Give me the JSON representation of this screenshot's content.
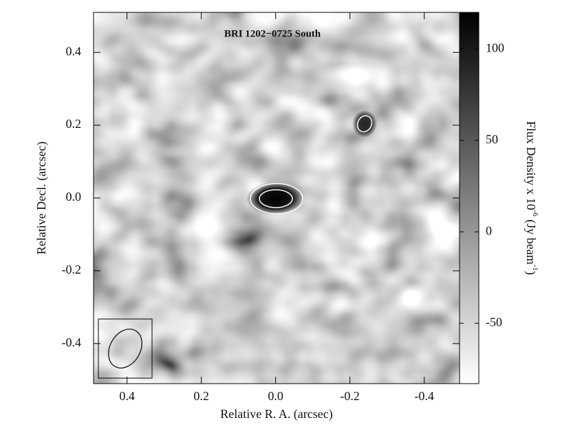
{
  "chart_data": {
    "type": "image",
    "title": "BRI 1202−0725 South",
    "x_label": "Relative R. A. (arcsec)",
    "y_label": "Relative Decl. (arcsec)",
    "colorbar_label": [
      "Flux Density x 10",
      "-6",
      " (Jy beam",
      "-1",
      ")"
    ],
    "xlim": [
      0.49,
      -0.495
    ],
    "xticks": [
      0.4,
      0.2,
      {
        "value": 0,
        "label": "0.0"
      },
      -0.2,
      -0.4
    ],
    "ylim": [
      -0.51,
      0.51
    ],
    "yticks": [
      -0.4,
      -0.2,
      {
        "value": 0,
        "label": "0.0"
      },
      0.2,
      0.4
    ],
    "clim": [
      -83,
      120
    ],
    "cticks": [
      -50,
      0,
      50,
      100
    ],
    "colormap": [
      "#ffffff",
      "#000000"
    ]
  }
}
